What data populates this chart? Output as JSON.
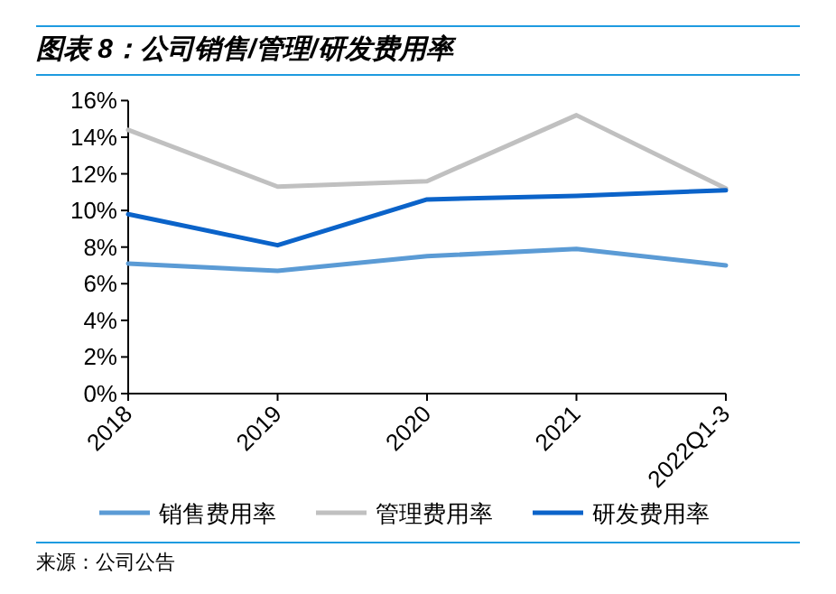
{
  "chart_data": {
    "type": "line",
    "title": "图表 8：公司销售/管理/研发费用率",
    "categories": [
      "2018",
      "2019",
      "2020",
      "2021",
      "2022Q1-3"
    ],
    "series": [
      {
        "name": "销售费用率",
        "color": "#5b9bd5",
        "values": [
          7.1,
          6.7,
          7.5,
          7.9,
          7.0
        ]
      },
      {
        "name": "管理费用率",
        "color": "#c0c0c0",
        "values": [
          14.4,
          11.3,
          11.6,
          15.2,
          11.2
        ]
      },
      {
        "name": "研发费用率",
        "color": "#0b63c9",
        "values": [
          9.8,
          8.1,
          10.6,
          10.8,
          11.1
        ]
      }
    ],
    "ylim": [
      0,
      16
    ],
    "yticks": [
      {
        "value": 0,
        "label": "0%"
      },
      {
        "value": 2,
        "label": "2%"
      },
      {
        "value": 4,
        "label": "4%"
      },
      {
        "value": 6,
        "label": "6%"
      },
      {
        "value": 8,
        "label": "8%"
      },
      {
        "value": 10,
        "label": "10%"
      },
      {
        "value": 12,
        "label": "12%"
      },
      {
        "value": 14,
        "label": "14%"
      },
      {
        "value": 16,
        "label": "16%"
      }
    ],
    "grid": false,
    "legend": "bottom",
    "marker": "none",
    "line_style": "solid",
    "annotations": [
      "来源：公司公告"
    ]
  }
}
